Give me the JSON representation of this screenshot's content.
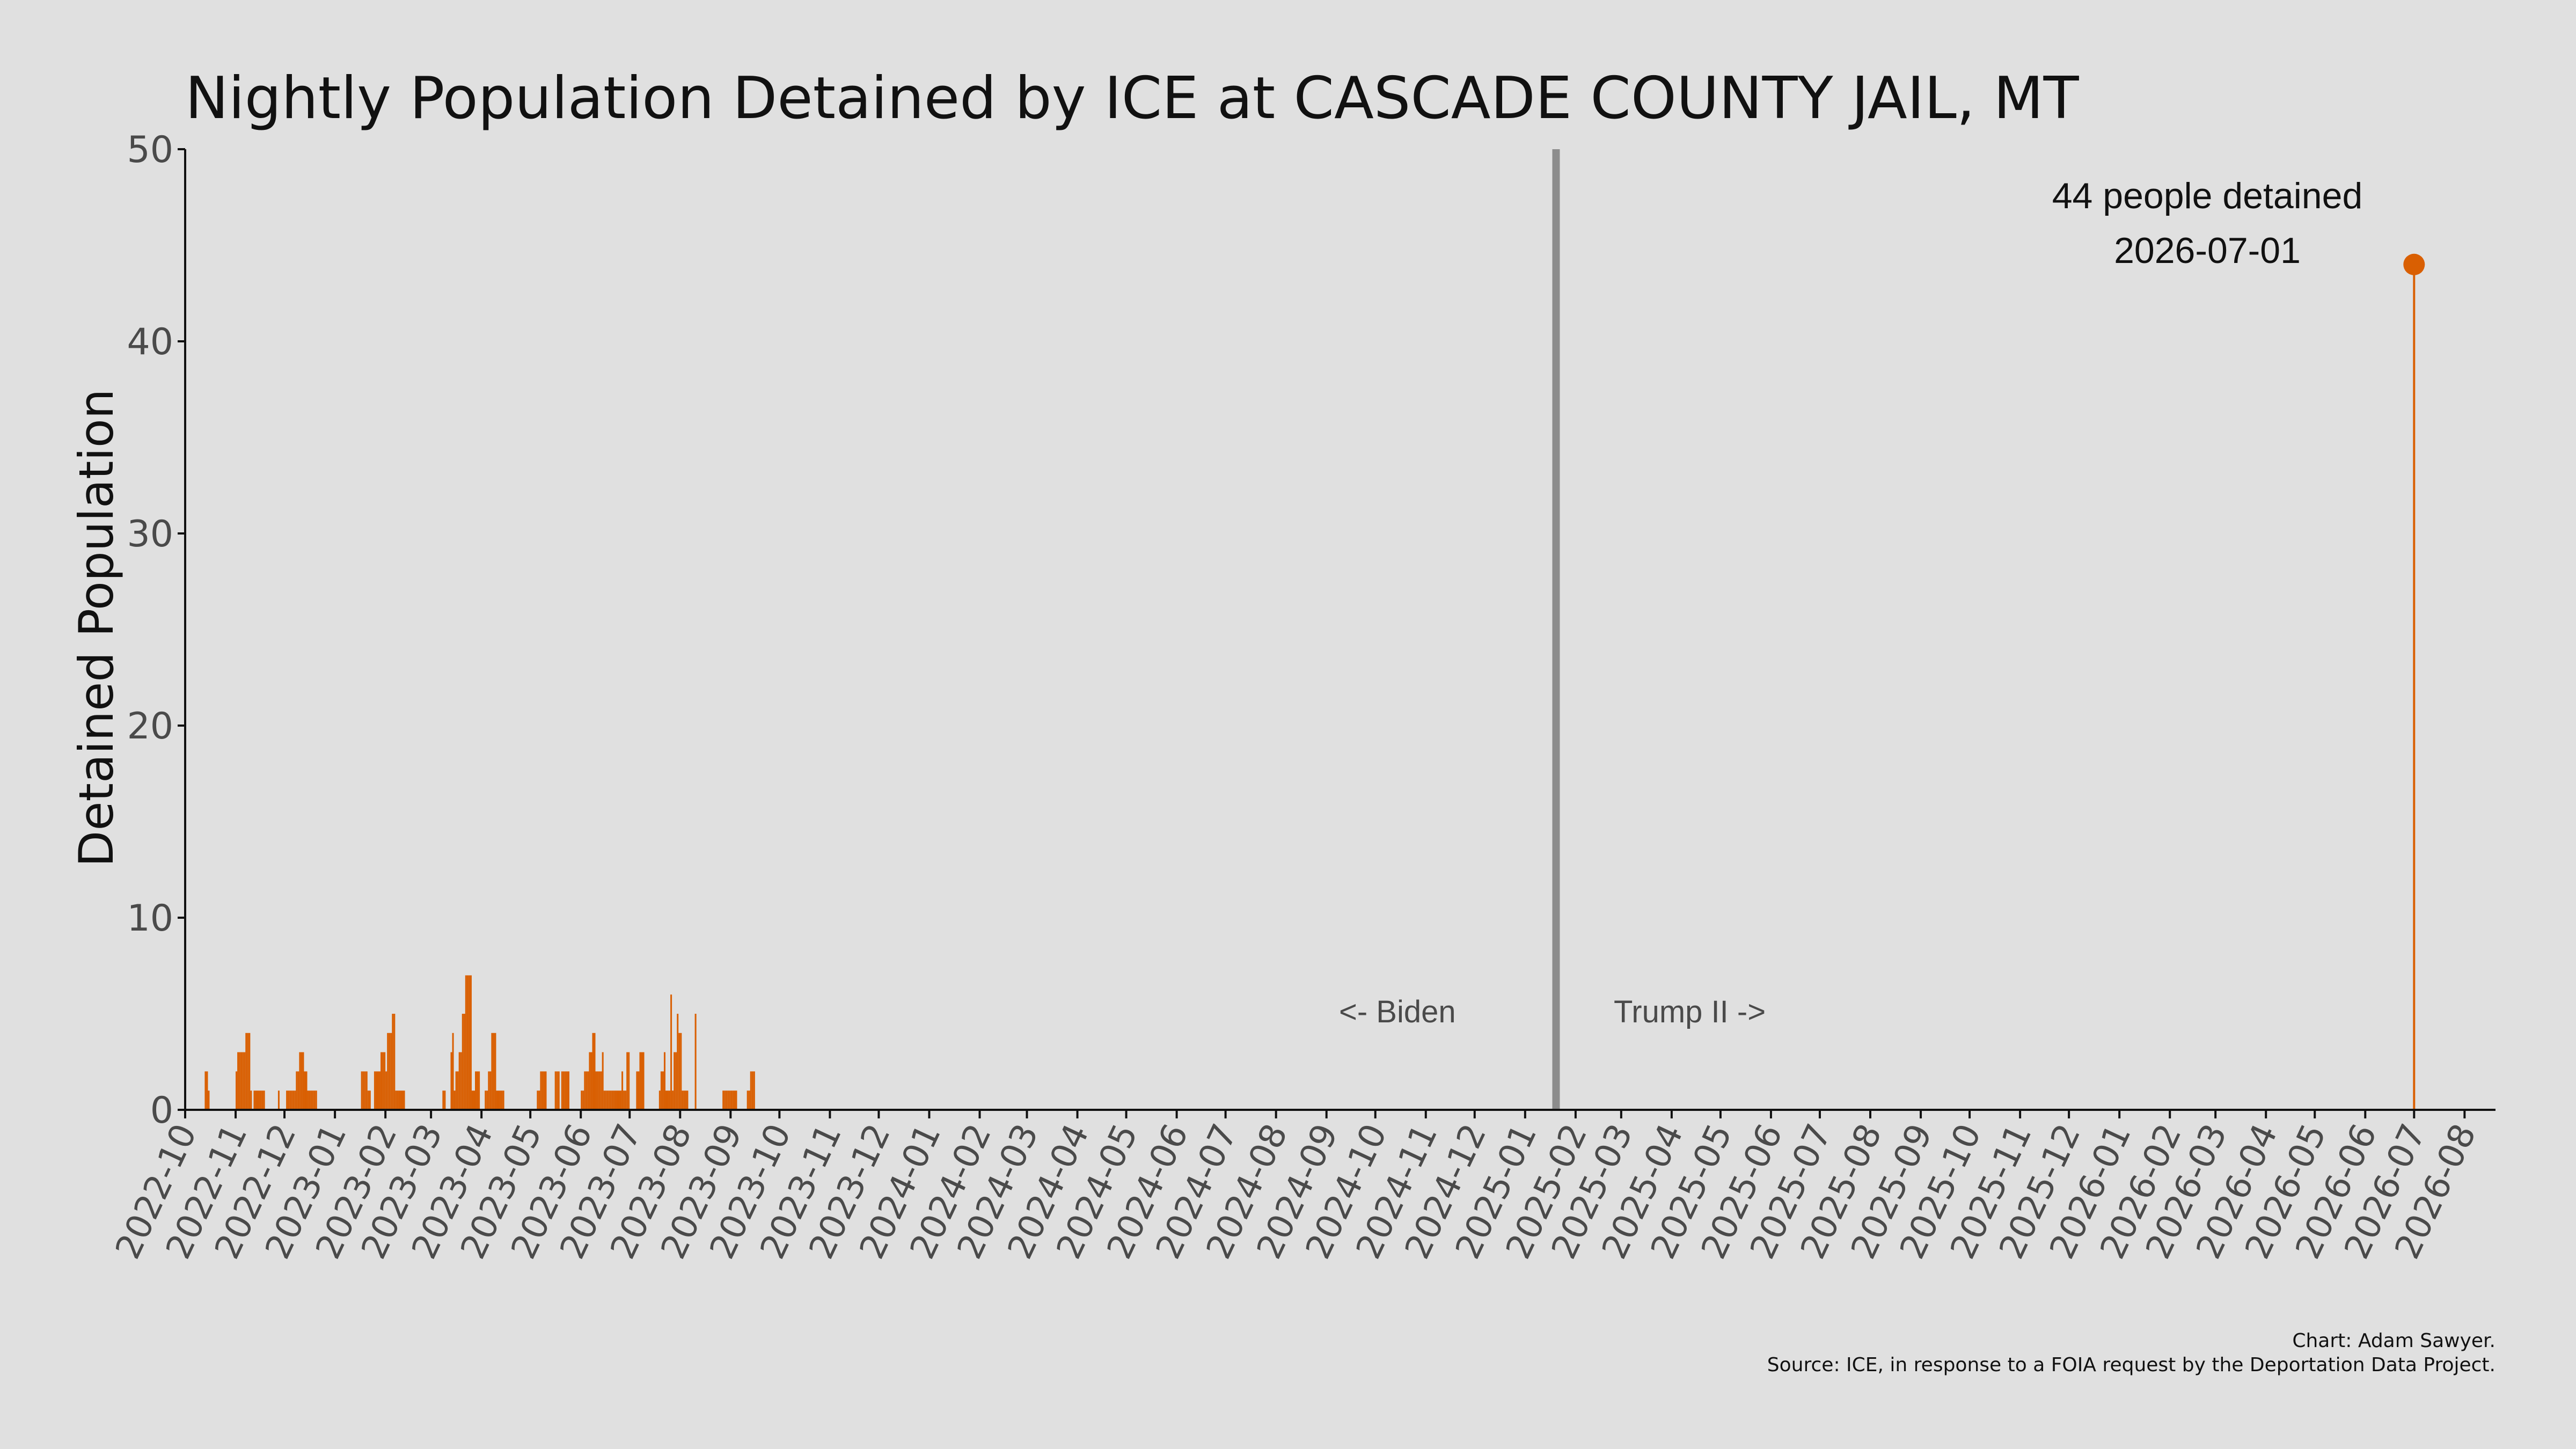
{
  "chart_data": {
    "type": "bar",
    "title": "Nightly Population Detained by ICE at CASCADE COUNTY JAIL, MT",
    "ylabel": "Detained Population",
    "xlabel": "",
    "ylim": [
      0,
      50
    ],
    "yticks": [
      "0",
      "10",
      "20",
      "30",
      "40",
      "50"
    ],
    "xlim": [
      "2022-10-01",
      "2026-08-20"
    ],
    "grid": false,
    "colors": {
      "bars": "#d95f02",
      "divider": "#8c8c8c",
      "background": "#e0e0e0"
    },
    "xticks": [
      "2022-10",
      "2022-11",
      "2022-12",
      "2023-01",
      "2023-02",
      "2023-03",
      "2023-04",
      "2023-05",
      "2023-06",
      "2023-07",
      "2023-08",
      "2023-09",
      "2023-10",
      "2023-11",
      "2023-12",
      "2024-01",
      "2024-02",
      "2024-03",
      "2024-04",
      "2024-05",
      "2024-06",
      "2024-07",
      "2024-08",
      "2024-09",
      "2024-10",
      "2024-11",
      "2024-12",
      "2025-01",
      "2025-02",
      "2025-03",
      "2025-04",
      "2025-05",
      "2025-06",
      "2025-07",
      "2025-08",
      "2025-09",
      "2025-10",
      "2025-11",
      "2025-12",
      "2026-01",
      "2026-02",
      "2026-03",
      "2026-04",
      "2026-05",
      "2026-06",
      "2026-07",
      "2026-08"
    ],
    "divider": {
      "date": "2025-01-20",
      "left_label": "<- Biden",
      "right_label": "Trump II ->"
    },
    "peak": {
      "date": "2026-07-01",
      "value": 44,
      "label_line1": "44 people detained",
      "label_line2": "2026-07-01"
    },
    "series": [
      {
        "values": [
          [
            "2022-10-13",
            2
          ],
          [
            "2022-10-14",
            2
          ],
          [
            "2022-10-15",
            1
          ],
          [
            "2022-11-01",
            2
          ],
          [
            "2022-11-02",
            3
          ],
          [
            "2022-11-03",
            3
          ],
          [
            "2022-11-04",
            3
          ],
          [
            "2022-11-05",
            3
          ],
          [
            "2022-11-06",
            3
          ],
          [
            "2022-11-07",
            4
          ],
          [
            "2022-11-08",
            4
          ],
          [
            "2022-11-09",
            4
          ],
          [
            "2022-11-10",
            1
          ],
          [
            "2022-11-12",
            1
          ],
          [
            "2022-11-13",
            1
          ],
          [
            "2022-11-14",
            1
          ],
          [
            "2022-11-15",
            1
          ],
          [
            "2022-11-16",
            1
          ],
          [
            "2022-11-17",
            1
          ],
          [
            "2022-11-18",
            1
          ],
          [
            "2022-11-27",
            1
          ],
          [
            "2022-12-02",
            1
          ],
          [
            "2022-12-03",
            1
          ],
          [
            "2022-12-04",
            1
          ],
          [
            "2022-12-05",
            1
          ],
          [
            "2022-12-06",
            1
          ],
          [
            "2022-12-07",
            1
          ],
          [
            "2022-12-08",
            2
          ],
          [
            "2022-12-09",
            2
          ],
          [
            "2022-12-10",
            3
          ],
          [
            "2022-12-11",
            3
          ],
          [
            "2022-12-12",
            3
          ],
          [
            "2022-12-13",
            2
          ],
          [
            "2022-12-14",
            2
          ],
          [
            "2022-12-15",
            1
          ],
          [
            "2022-12-16",
            1
          ],
          [
            "2022-12-17",
            1
          ],
          [
            "2022-12-18",
            1
          ],
          [
            "2022-12-19",
            1
          ],
          [
            "2022-12-20",
            1
          ],
          [
            "2023-01-17",
            2
          ],
          [
            "2023-01-18",
            2
          ],
          [
            "2023-01-19",
            2
          ],
          [
            "2023-01-20",
            2
          ],
          [
            "2023-01-21",
            1
          ],
          [
            "2023-01-22",
            1
          ],
          [
            "2023-01-25",
            2
          ],
          [
            "2023-01-26",
            2
          ],
          [
            "2023-01-27",
            2
          ],
          [
            "2023-01-28",
            2
          ],
          [
            "2023-01-29",
            3
          ],
          [
            "2023-01-30",
            3
          ],
          [
            "2023-01-31",
            3
          ],
          [
            "2023-02-01",
            2
          ],
          [
            "2023-02-02",
            4
          ],
          [
            "2023-02-03",
            4
          ],
          [
            "2023-02-04",
            4
          ],
          [
            "2023-02-05",
            5
          ],
          [
            "2023-02-06",
            5
          ],
          [
            "2023-02-07",
            1
          ],
          [
            "2023-02-08",
            1
          ],
          [
            "2023-02-09",
            1
          ],
          [
            "2023-02-10",
            1
          ],
          [
            "2023-02-11",
            1
          ],
          [
            "2023-02-12",
            1
          ],
          [
            "2023-03-08",
            1
          ],
          [
            "2023-03-09",
            1
          ],
          [
            "2023-03-13",
            3
          ],
          [
            "2023-03-14",
            4
          ],
          [
            "2023-03-15",
            1
          ],
          [
            "2023-03-16",
            2
          ],
          [
            "2023-03-17",
            2
          ],
          [
            "2023-03-18",
            3
          ],
          [
            "2023-03-19",
            3
          ],
          [
            "2023-03-20",
            5
          ],
          [
            "2023-03-21",
            5
          ],
          [
            "2023-03-22",
            7
          ],
          [
            "2023-03-23",
            7
          ],
          [
            "2023-03-24",
            7
          ],
          [
            "2023-03-25",
            7
          ],
          [
            "2023-03-26",
            1
          ],
          [
            "2023-03-27",
            1
          ],
          [
            "2023-03-28",
            2
          ],
          [
            "2023-03-29",
            2
          ],
          [
            "2023-03-30",
            2
          ],
          [
            "2023-04-03",
            1
          ],
          [
            "2023-04-04",
            1
          ],
          [
            "2023-04-05",
            2
          ],
          [
            "2023-04-06",
            2
          ],
          [
            "2023-04-07",
            4
          ],
          [
            "2023-04-08",
            4
          ],
          [
            "2023-04-09",
            4
          ],
          [
            "2023-04-10",
            1
          ],
          [
            "2023-04-11",
            1
          ],
          [
            "2023-04-12",
            1
          ],
          [
            "2023-04-13",
            1
          ],
          [
            "2023-04-14",
            1
          ],
          [
            "2023-05-05",
            1
          ],
          [
            "2023-05-06",
            1
          ],
          [
            "2023-05-07",
            2
          ],
          [
            "2023-05-08",
            2
          ],
          [
            "2023-05-09",
            2
          ],
          [
            "2023-05-10",
            2
          ],
          [
            "2023-05-16",
            2
          ],
          [
            "2023-05-17",
            2
          ],
          [
            "2023-05-18",
            2
          ],
          [
            "2023-05-20",
            2
          ],
          [
            "2023-05-21",
            2
          ],
          [
            "2023-05-22",
            2
          ],
          [
            "2023-05-23",
            2
          ],
          [
            "2023-05-24",
            2
          ],
          [
            "2023-06-01",
            1
          ],
          [
            "2023-06-02",
            1
          ],
          [
            "2023-06-03",
            2
          ],
          [
            "2023-06-04",
            2
          ],
          [
            "2023-06-05",
            2
          ],
          [
            "2023-06-06",
            3
          ],
          [
            "2023-06-07",
            3
          ],
          [
            "2023-06-08",
            4
          ],
          [
            "2023-06-09",
            4
          ],
          [
            "2023-06-10",
            2
          ],
          [
            "2023-06-11",
            2
          ],
          [
            "2023-06-12",
            2
          ],
          [
            "2023-06-13",
            2
          ],
          [
            "2023-06-14",
            3
          ],
          [
            "2023-06-15",
            1
          ],
          [
            "2023-06-16",
            1
          ],
          [
            "2023-06-17",
            1
          ],
          [
            "2023-06-18",
            1
          ],
          [
            "2023-06-19",
            1
          ],
          [
            "2023-06-20",
            1
          ],
          [
            "2023-06-21",
            1
          ],
          [
            "2023-06-22",
            1
          ],
          [
            "2023-06-23",
            1
          ],
          [
            "2023-06-24",
            1
          ],
          [
            "2023-06-25",
            1
          ],
          [
            "2023-06-26",
            2
          ],
          [
            "2023-06-27",
            1
          ],
          [
            "2023-06-28",
            1
          ],
          [
            "2023-06-29",
            3
          ],
          [
            "2023-06-30",
            3
          ],
          [
            "2023-07-05",
            2
          ],
          [
            "2023-07-06",
            2
          ],
          [
            "2023-07-07",
            3
          ],
          [
            "2023-07-08",
            3
          ],
          [
            "2023-07-09",
            3
          ],
          [
            "2023-07-19",
            1
          ],
          [
            "2023-07-20",
            2
          ],
          [
            "2023-07-21",
            2
          ],
          [
            "2023-07-22",
            3
          ],
          [
            "2023-07-23",
            1
          ],
          [
            "2023-07-24",
            1
          ],
          [
            "2023-07-25",
            1
          ],
          [
            "2023-07-26",
            6
          ],
          [
            "2023-07-27",
            1
          ],
          [
            "2023-07-28",
            3
          ],
          [
            "2023-07-29",
            3
          ],
          [
            "2023-07-30",
            5
          ],
          [
            "2023-07-31",
            4
          ],
          [
            "2023-08-01",
            4
          ],
          [
            "2023-08-02",
            1
          ],
          [
            "2023-08-03",
            1
          ],
          [
            "2023-08-04",
            1
          ],
          [
            "2023-08-05",
            1
          ],
          [
            "2023-08-10",
            5
          ],
          [
            "2023-08-27",
            1
          ],
          [
            "2023-08-28",
            1
          ],
          [
            "2023-08-29",
            1
          ],
          [
            "2023-08-30",
            1
          ],
          [
            "2023-08-31",
            1
          ],
          [
            "2023-09-01",
            1
          ],
          [
            "2023-09-02",
            1
          ],
          [
            "2023-09-03",
            1
          ],
          [
            "2023-09-04",
            1
          ],
          [
            "2023-09-11",
            1
          ],
          [
            "2023-09-12",
            1
          ],
          [
            "2023-09-13",
            2
          ],
          [
            "2023-09-14",
            2
          ],
          [
            "2023-09-15",
            2
          ]
        ]
      }
    ]
  },
  "credit": {
    "line1": "Chart: Adam Sawyer.",
    "line2": "Source: ICE, in response to a FOIA request by the Deportation Data Project."
  }
}
